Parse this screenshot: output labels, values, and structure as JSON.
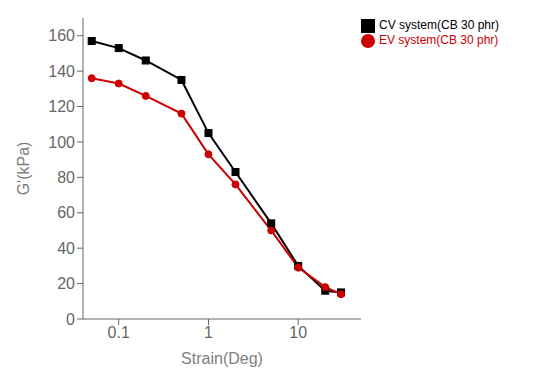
{
  "chart_data": {
    "type": "line",
    "xlabel": "Strain(Deg)",
    "ylabel": "G'(kPa)",
    "x": [
      0.05,
      0.1,
      0.2,
      0.5,
      1.0,
      2.0,
      5.0,
      10.0,
      20.0,
      30.0
    ],
    "series": [
      {
        "name": "CV system(CB 30 phr)",
        "color": "#000000",
        "marker": "square",
        "values": [
          157,
          153,
          146,
          135,
          105,
          83,
          54,
          30,
          16,
          15
        ]
      },
      {
        "name": "EV system(CB 30 phr)",
        "color": "#cc0000",
        "marker": "circle",
        "values": [
          136,
          133,
          126,
          116,
          93,
          76,
          50,
          29,
          18,
          14
        ]
      }
    ],
    "log": "x",
    "xlim": [
      0.04,
      50
    ],
    "ylim": [
      0,
      170
    ],
    "xticks": [
      0.1,
      1.0,
      10.0
    ],
    "yticks": [
      0,
      20,
      40,
      60,
      80,
      100,
      120,
      140,
      160
    ],
    "legend": "upper right",
    "grid": false
  }
}
